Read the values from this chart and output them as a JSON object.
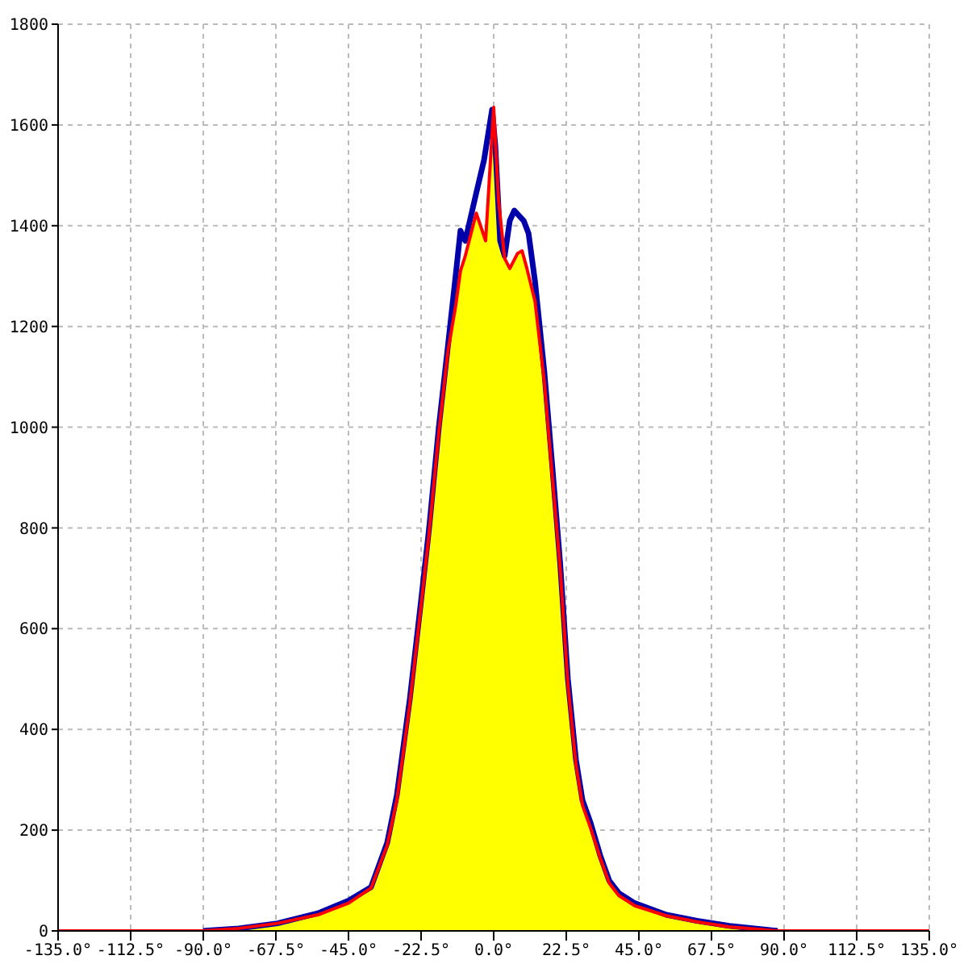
{
  "chart_data": {
    "type": "line",
    "xlim": [
      -135,
      135
    ],
    "ylim": [
      0,
      1800
    ],
    "xticks": [
      {
        "value": -135,
        "label": "-135.0°"
      },
      {
        "value": -112.5,
        "label": "-112.5°"
      },
      {
        "value": -90,
        "label": "-90.0°"
      },
      {
        "value": -67.5,
        "label": "-67.5°"
      },
      {
        "value": -45,
        "label": "-45.0°"
      },
      {
        "value": -22.5,
        "label": "-22.5°"
      },
      {
        "value": 0,
        "label": "0.0°"
      },
      {
        "value": 22.5,
        "label": "22.5°"
      },
      {
        "value": 45,
        "label": "45.0°"
      },
      {
        "value": 67.5,
        "label": "67.5°"
      },
      {
        "value": 90,
        "label": "90.0°"
      },
      {
        "value": 112.5,
        "label": "112.5°"
      },
      {
        "value": 135,
        "label": "135.0°"
      }
    ],
    "yticks": [
      0,
      200,
      400,
      600,
      800,
      1000,
      1200,
      1400,
      1600,
      1800
    ],
    "grid": true,
    "legend": false,
    "marker": "none",
    "line_style": "solid",
    "series": [
      {
        "type": "area",
        "color": "#ffff00",
        "x": [
          -90,
          -79,
          -67,
          -54.5,
          -45,
          -38,
          -33,
          -30,
          -26,
          -22.6,
          -20,
          -17,
          -14.2,
          -11.8,
          -10.3,
          -8.8,
          -5.4,
          -2.5,
          0,
          1.5,
          3.4,
          5,
          7.4,
          8.8,
          10.3,
          12.8,
          15.7,
          18.2,
          20.6,
          23,
          25.5,
          27.5,
          30,
          33,
          35.8,
          38.8,
          43.7,
          53.5,
          63,
          73,
          88
        ],
        "values": [
          0,
          5,
          15,
          32,
          55,
          85,
          170,
          260,
          450,
          640,
          790,
          990,
          1150,
          1240,
          1310,
          1340,
          1425,
          1370,
          1635,
          1450,
          1335,
          1315,
          1345,
          1350,
          1315,
          1250,
          1090,
          900,
          720,
          490,
          330,
          250,
          205,
          145,
          95,
          70,
          50,
          30,
          18,
          8,
          0
        ]
      },
      {
        "color": "#0000aa",
        "x": [
          -90,
          -79,
          -67,
          -54.5,
          -45,
          -38,
          -33,
          -30,
          -26,
          -22.6,
          -20,
          -17,
          -14.2,
          -11.8,
          -10.3,
          -8.8,
          -5.4,
          -3,
          -0.5,
          0.5,
          2,
          3.4,
          5,
          6.4,
          9.3,
          10.8,
          12.8,
          15.7,
          18.2,
          20.6,
          23,
          25.5,
          27.5,
          30,
          33,
          35.8,
          38.8,
          43.7,
          53.5,
          63,
          73,
          88
        ],
        "values": [
          0,
          5,
          15,
          35,
          60,
          87,
          175,
          270,
          460,
          650,
          800,
          1000,
          1160,
          1300,
          1390,
          1370,
          1465,
          1530,
          1630,
          1560,
          1370,
          1340,
          1410,
          1430,
          1410,
          1385,
          1290,
          1110,
          920,
          730,
          500,
          340,
          260,
          215,
          150,
          100,
          75,
          55,
          32,
          20,
          10,
          0
        ]
      },
      {
        "color": "#ff0000",
        "x": [
          -135,
          -90,
          -79,
          -67,
          -54.5,
          -45,
          -38,
          -33,
          -30,
          -26,
          -22.6,
          -20,
          -17,
          -14.2,
          -11.8,
          -10.3,
          -8.8,
          -5.4,
          -2.5,
          0,
          1.5,
          3.4,
          5,
          7.4,
          8.8,
          10.3,
          12.8,
          15.7,
          18.2,
          20.6,
          23,
          25.5,
          27.5,
          30,
          33,
          35.8,
          38.8,
          43.7,
          53.5,
          63,
          73,
          88,
          135
        ],
        "values": [
          0,
          0,
          5,
          15,
          32,
          55,
          85,
          170,
          260,
          450,
          640,
          790,
          990,
          1150,
          1240,
          1310,
          1340,
          1425,
          1370,
          1635,
          1450,
          1335,
          1315,
          1345,
          1350,
          1315,
          1250,
          1090,
          900,
          720,
          490,
          330,
          250,
          205,
          145,
          95,
          70,
          50,
          30,
          18,
          8,
          0,
          0
        ]
      }
    ]
  }
}
